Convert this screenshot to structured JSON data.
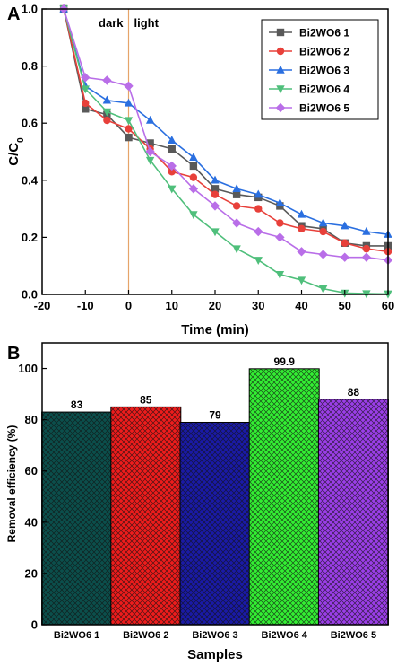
{
  "chart_data": [
    {
      "panel": "A",
      "type": "line",
      "xlabel": "Time (min)",
      "ylabel": "C/C0",
      "xlim": [
        -20,
        60
      ],
      "ylim": [
        0.0,
        1.0
      ],
      "xticks": [
        "-20",
        "-10",
        "0",
        "10",
        "20",
        "30",
        "40",
        "50",
        "60"
      ],
      "yticks": [
        "0.0",
        "0.2",
        "0.4",
        "0.6",
        "0.8",
        "1.0"
      ],
      "annotations": {
        "dark": "dark",
        "light": "light"
      },
      "divider_x": 0,
      "legend_position": "top-right",
      "x": [
        -15,
        -10,
        -5,
        0,
        5,
        10,
        15,
        20,
        25,
        30,
        35,
        40,
        45,
        50,
        55,
        60
      ],
      "series": [
        {
          "name": "Bi2WO6 1",
          "color": "#595959",
          "marker": "square",
          "values": [
            1.0,
            0.65,
            0.63,
            0.55,
            0.53,
            0.51,
            0.45,
            0.37,
            0.35,
            0.34,
            0.31,
            0.24,
            0.23,
            0.18,
            0.17,
            0.17
          ]
        },
        {
          "name": "Bi2WO6 2",
          "color": "#e8403a",
          "marker": "circle",
          "values": [
            1.0,
            0.67,
            0.61,
            0.58,
            0.51,
            0.43,
            0.41,
            0.35,
            0.31,
            0.3,
            0.25,
            0.23,
            0.22,
            0.18,
            0.16,
            0.15
          ]
        },
        {
          "name": "Bi2WO6 3",
          "color": "#2a6fe0",
          "marker": "triangle-up",
          "values": [
            1.0,
            0.73,
            0.68,
            0.67,
            0.61,
            0.54,
            0.48,
            0.4,
            0.37,
            0.35,
            0.32,
            0.28,
            0.25,
            0.24,
            0.22,
            0.21
          ]
        },
        {
          "name": "Bi2WO6 4",
          "color": "#4fbf7b",
          "marker": "triangle-down",
          "values": [
            1.0,
            0.72,
            0.64,
            0.61,
            0.47,
            0.37,
            0.28,
            0.22,
            0.16,
            0.12,
            0.07,
            0.05,
            0.02,
            0.005,
            0.003,
            0.002
          ]
        },
        {
          "name": "Bi2WO6 5",
          "color": "#b96ee8",
          "marker": "diamond",
          "values": [
            1.0,
            0.76,
            0.75,
            0.73,
            0.5,
            0.45,
            0.37,
            0.31,
            0.25,
            0.22,
            0.2,
            0.15,
            0.14,
            0.13,
            0.13,
            0.12
          ]
        }
      ]
    },
    {
      "panel": "B",
      "type": "bar",
      "xlabel": "Samples",
      "ylabel": "Removal efficiency (%)",
      "ylim": [
        0,
        110
      ],
      "yticks": [
        "0",
        "20",
        "40",
        "60",
        "80",
        "100"
      ],
      "categories": [
        "Bi2WO6 1",
        "Bi2WO6 2",
        "Bi2WO6 3",
        "Bi2WO6 4",
        "Bi2WO6 5"
      ],
      "values": [
        83,
        85,
        79,
        99.9,
        88
      ],
      "data_labels": [
        "83",
        "85",
        "79",
        "99.9",
        "88"
      ],
      "colors": [
        "#0b4f4c",
        "#ee1c1c",
        "#1a1aa6",
        "#33ee33",
        "#9b3ee8"
      ],
      "pattern": "crosshatch"
    }
  ]
}
